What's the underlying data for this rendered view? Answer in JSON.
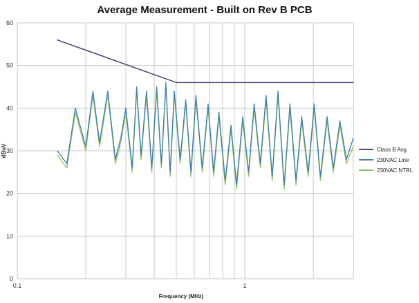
{
  "chart_data": {
    "type": "line",
    "title": "Average Measurement - Built on Rev B PCB",
    "xlabel": "Frequency (MHz)",
    "ylabel": "dBuV",
    "xscale": "log",
    "xlim": [
      0.1,
      3.0
    ],
    "ylim": [
      0,
      60
    ],
    "yticks": [
      "0",
      "10",
      "20",
      "30",
      "40",
      "50",
      "60"
    ],
    "xticks": [
      {
        "value": 0.1,
        "label": "0.1"
      },
      {
        "value": 1,
        "label": "1"
      }
    ],
    "grid": true,
    "legend_position": "right",
    "series": [
      {
        "name": "Class B Avg",
        "color": "#4a4a7a",
        "x": [
          0.15,
          0.5,
          3.0
        ],
        "values": [
          56,
          46,
          46
        ]
      },
      {
        "name": "230VAC Line",
        "color": "#3e7fb0",
        "x": [
          0.15,
          0.165,
          0.18,
          0.2,
          0.215,
          0.23,
          0.25,
          0.27,
          0.285,
          0.3,
          0.32,
          0.335,
          0.35,
          0.37,
          0.39,
          0.41,
          0.43,
          0.45,
          0.47,
          0.49,
          0.52,
          0.55,
          0.58,
          0.61,
          0.65,
          0.69,
          0.73,
          0.77,
          0.82,
          0.87,
          0.92,
          0.98,
          1.04,
          1.1,
          1.17,
          1.24,
          1.32,
          1.4,
          1.49,
          1.58,
          1.68,
          1.78,
          1.9,
          2.02,
          2.15,
          2.3,
          2.45,
          2.62,
          2.8,
          3.0
        ],
        "values": [
          30,
          27,
          40,
          31,
          44,
          32,
          44,
          28,
          33,
          40,
          26,
          45,
          29,
          44,
          26,
          45,
          27,
          46,
          25,
          44,
          28,
          42,
          25,
          43,
          26,
          41,
          25,
          39,
          23,
          36,
          22,
          38,
          25,
          41,
          27,
          43,
          24,
          44,
          22,
          41,
          23,
          38,
          25,
          41,
          24,
          38,
          26,
          37,
          28,
          33
        ]
      },
      {
        "name": "230VAC NTRL",
        "color": "#8fc05a",
        "x": [
          0.15,
          0.165,
          0.18,
          0.2,
          0.215,
          0.23,
          0.25,
          0.27,
          0.285,
          0.3,
          0.32,
          0.335,
          0.35,
          0.37,
          0.39,
          0.41,
          0.43,
          0.45,
          0.47,
          0.49,
          0.52,
          0.55,
          0.58,
          0.61,
          0.65,
          0.69,
          0.73,
          0.77,
          0.82,
          0.87,
          0.92,
          0.98,
          1.04,
          1.1,
          1.17,
          1.24,
          1.32,
          1.4,
          1.49,
          1.58,
          1.68,
          1.78,
          1.9,
          2.02,
          2.15,
          2.3,
          2.45,
          2.62,
          2.8,
          3.0
        ],
        "values": [
          29,
          26,
          39,
          30,
          43,
          31,
          43,
          27,
          32,
          39,
          25,
          44,
          28,
          43,
          25,
          44,
          26,
          45,
          24,
          43,
          27,
          41,
          24,
          42,
          25,
          40,
          24,
          38,
          22,
          35,
          21,
          37,
          24,
          40,
          26,
          42,
          23,
          43,
          21,
          40,
          22,
          37,
          24,
          40,
          23,
          37,
          25,
          36,
          27,
          31
        ]
      }
    ]
  }
}
